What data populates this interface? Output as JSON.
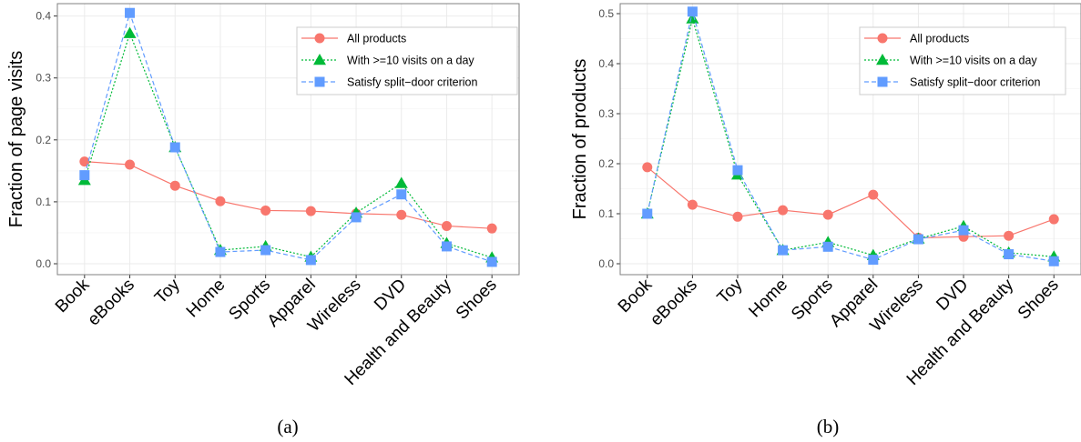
{
  "colors": {
    "all_products": "#F8766D",
    "with_10_visits": "#00BA38",
    "split_door": "#619CFF",
    "grid": "#ebebeb",
    "axis_border": "#808080"
  },
  "chart_data": [
    {
      "type": "line",
      "panel_caption": "(a)",
      "ylabel": "Fraction of page visits",
      "xlabel": "",
      "ylim": [
        0,
        0.42
      ],
      "yticks": [
        0.0,
        0.1,
        0.2,
        0.3,
        0.4
      ],
      "ytick_labels": [
        "0.0",
        "0.1",
        "0.2",
        "0.3",
        "0.4"
      ],
      "grid": true,
      "legend_position": "top-right",
      "categories": [
        "Book",
        "eBooks",
        "Toy",
        "Home",
        "Sports",
        "Apparel",
        "Wireless",
        "DVD",
        "Health and Beauty",
        "Shoes"
      ],
      "series": [
        {
          "name": "All products",
          "marker": "circle",
          "line": "solid",
          "color": "#F8766D",
          "values": [
            0.165,
            0.16,
            0.126,
            0.101,
            0.086,
            0.085,
            0.081,
            0.079,
            0.061,
            0.057
          ]
        },
        {
          "name": "With >=10 visits on a day",
          "marker": "triangle",
          "line": "dotted",
          "color": "#00BA38",
          "values": [
            0.135,
            0.372,
            0.188,
            0.022,
            0.028,
            0.011,
            0.082,
            0.13,
            0.033,
            0.01
          ]
        },
        {
          "name": "Satisfy split−door criterion",
          "marker": "square",
          "line": "dashed",
          "color": "#619CFF",
          "values": [
            0.143,
            0.405,
            0.188,
            0.019,
            0.022,
            0.006,
            0.075,
            0.112,
            0.028,
            0.003
          ]
        }
      ]
    },
    {
      "type": "line",
      "panel_caption": "(b)",
      "ylabel": "Fraction of products",
      "xlabel": "",
      "ylim": [
        0,
        0.52
      ],
      "yticks": [
        0.0,
        0.1,
        0.2,
        0.3,
        0.4,
        0.5
      ],
      "ytick_labels": [
        "0.0",
        "0.1",
        "0.2",
        "0.3",
        "0.4",
        "0.5"
      ],
      "grid": true,
      "legend_position": "top-right",
      "categories": [
        "Book",
        "eBooks",
        "Toy",
        "Home",
        "Sports",
        "Apparel",
        "Wireless",
        "DVD",
        "Health and Beauty",
        "Shoes"
      ],
      "series": [
        {
          "name": "All products",
          "marker": "circle",
          "line": "solid",
          "color": "#F8766D",
          "values": [
            0.193,
            0.118,
            0.094,
            0.107,
            0.098,
            0.138,
            0.052,
            0.054,
            0.056,
            0.089
          ]
        },
        {
          "name": "With >=10 visits on a day",
          "marker": "triangle",
          "line": "dotted",
          "color": "#00BA38",
          "values": [
            0.1,
            0.49,
            0.178,
            0.027,
            0.043,
            0.017,
            0.05,
            0.075,
            0.022,
            0.014
          ]
        },
        {
          "name": "Satisfy split−door criterion",
          "marker": "square",
          "line": "dashed",
          "color": "#619CFF",
          "values": [
            0.1,
            0.504,
            0.187,
            0.027,
            0.034,
            0.008,
            0.049,
            0.067,
            0.019,
            0.005
          ]
        }
      ]
    }
  ]
}
